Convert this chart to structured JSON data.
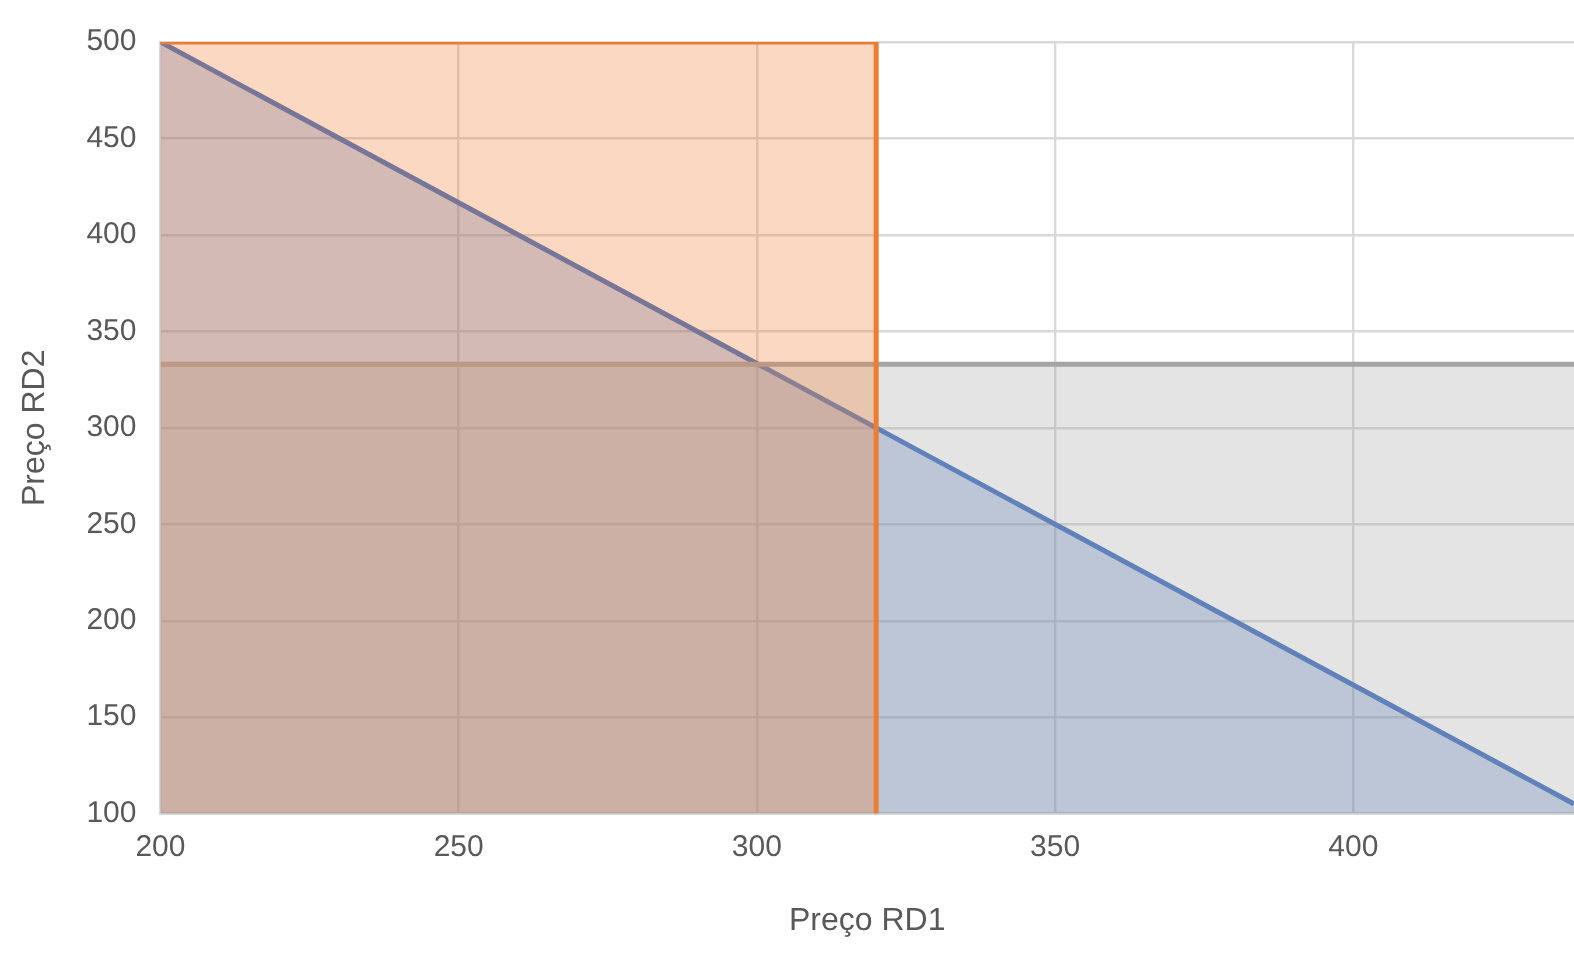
{
  "chart_data": {
    "type": "area",
    "xlabel": "Preço RD1",
    "ylabel": "Preço RD2",
    "xlim": [
      200,
      437
    ],
    "xticks": [
      200,
      250,
      300,
      350,
      400
    ],
    "ylim": [
      100,
      500
    ],
    "yticks": [
      100,
      150,
      200,
      250,
      300,
      350,
      400,
      450,
      500
    ],
    "series": [
      {
        "color": "#ed7d31",
        "x": [
          200,
          320
        ],
        "values": [
          500,
          500
        ]
      },
      {
        "color": "#a5a5a5",
        "x": [
          200,
          437
        ],
        "values": [
          333,
          333
        ]
      },
      {
        "color": "#4472c4",
        "x": [
          200,
          437
        ],
        "values": [
          500,
          105
        ]
      }
    ],
    "ref_lines": [
      {
        "axis": "x",
        "value": 320,
        "color": "#ed7d31"
      }
    ],
    "grid": true,
    "legend": false,
    "marker": "none",
    "line_style": "solid"
  }
}
